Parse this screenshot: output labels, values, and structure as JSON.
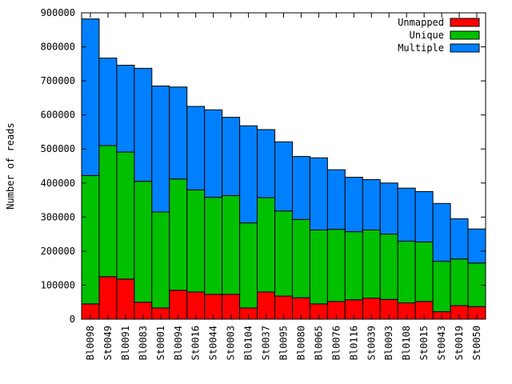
{
  "chart_data": {
    "type": "bar",
    "stacked": true,
    "title": "",
    "xlabel": "",
    "ylabel": "Number of reads",
    "ylim": [
      0,
      900000
    ],
    "yticks": [
      0,
      100000,
      200000,
      300000,
      400000,
      500000,
      600000,
      700000,
      800000,
      900000
    ],
    "grid": false,
    "legend_position": "top-right",
    "categories": [
      "Bl0098",
      "St0049",
      "Bl0091",
      "Bl0083",
      "St0001",
      "Bl0094",
      "St0016",
      "St0044",
      "St0003",
      "Bl0104",
      "St0037",
      "Bl0095",
      "Bl0080",
      "Bl0065",
      "Bl0076",
      "Bl0116",
      "St0039",
      "Bl0093",
      "Bl0108",
      "St0015",
      "St0043",
      "St0019",
      "St0050"
    ],
    "series": [
      {
        "name": "Unmapped",
        "color": "#ff0000",
        "values": [
          45000,
          125000,
          118000,
          50000,
          33000,
          85000,
          80000,
          73000,
          73000,
          33000,
          80000,
          68000,
          63000,
          45000,
          52000,
          57000,
          62000,
          58000,
          48000,
          52000,
          22000,
          40000,
          37000
        ]
      },
      {
        "name": "Unique",
        "color": "#00c000",
        "values": [
          377000,
          385000,
          373000,
          355000,
          282000,
          327000,
          300000,
          285000,
          290000,
          250000,
          277000,
          250000,
          230000,
          217000,
          212000,
          200000,
          200000,
          192000,
          181000,
          175000,
          148000,
          137000,
          128000
        ]
      },
      {
        "name": "Multiple",
        "color": "#0080ff",
        "values": [
          460000,
          257000,
          255000,
          332000,
          370000,
          270000,
          245000,
          257000,
          230000,
          285000,
          200000,
          203000,
          185000,
          212000,
          175000,
          160000,
          148000,
          150000,
          156000,
          148000,
          170000,
          118000,
          100000
        ]
      }
    ]
  }
}
